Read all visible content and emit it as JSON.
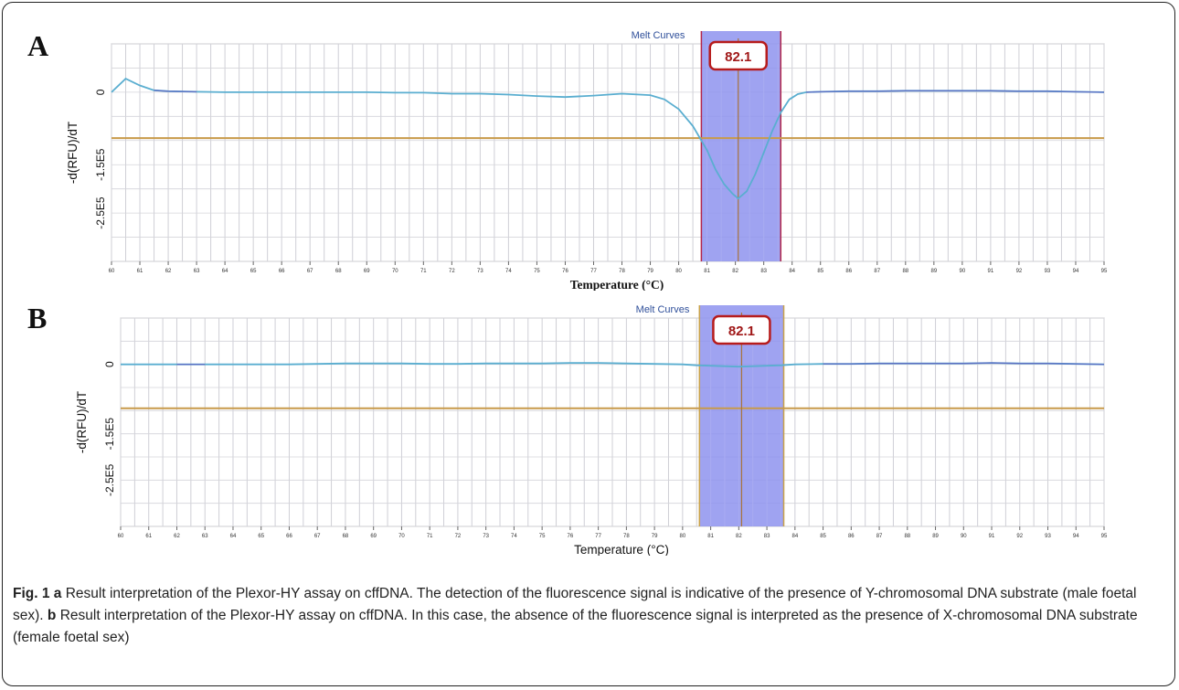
{
  "chart_data": [
    {
      "type": "line",
      "panel_label": "A",
      "title": "Melt Curves",
      "xlabel": "Temperature (°C)",
      "ylabel": "-d(RFU)/dT",
      "xlim": [
        60,
        95
      ],
      "ylim": [
        -3.5,
        1.0
      ],
      "x_ticks": [
        60,
        61,
        62,
        63,
        64,
        65,
        66,
        67,
        68,
        69,
        70,
        71,
        72,
        73,
        74,
        75,
        76,
        77,
        78,
        79,
        80,
        81,
        82,
        83,
        84,
        85,
        86,
        87,
        88,
        89,
        90,
        91,
        92,
        93,
        94,
        95
      ],
      "y_ticks": [
        {
          "value": 0,
          "label": "0"
        },
        {
          "value": -1.5,
          "label": "-1.5E5"
        },
        {
          "value": -2.5,
          "label": "-2.5E5"
        }
      ],
      "threshold": -0.95,
      "highlight_range": [
        80.8,
        83.6
      ],
      "marker": {
        "x": 82.1,
        "label": "82.1"
      },
      "grid": true,
      "colors": {
        "curve": "#5aaed0",
        "baseline_segment": "#5d5fc0",
        "threshold": "#c89a4a",
        "highlight": "#8e93ef",
        "highlight_edge": "#b3264a",
        "marker_line": "#a8733c",
        "marker_box": "#b71c1c"
      },
      "series": [
        {
          "x": [
            60.0,
            60.5,
            61.0,
            61.5,
            62.0,
            63.0,
            64.0,
            65.0,
            66.0,
            67.0,
            68.0,
            69.0,
            70.0,
            71.0,
            72.0,
            73.0,
            74.0,
            75.0,
            76.0,
            77.0,
            78.0,
            79.0,
            79.5,
            80.0,
            80.5,
            81.0,
            81.3,
            81.6,
            81.9,
            82.1,
            82.4,
            82.7,
            83.0,
            83.3,
            83.6,
            83.9,
            84.2,
            84.5,
            85.0,
            86.0,
            87.0,
            88.0,
            89.0,
            90.0,
            91.0,
            92.0,
            93.0,
            94.0,
            95.0
          ],
          "values": [
            0.0,
            0.28,
            0.14,
            0.04,
            0.02,
            0.01,
            0.0,
            0.0,
            0.0,
            0.0,
            0.0,
            0.0,
            -0.01,
            -0.01,
            -0.03,
            -0.03,
            -0.05,
            -0.08,
            -0.1,
            -0.07,
            -0.03,
            -0.06,
            -0.15,
            -0.35,
            -0.7,
            -1.2,
            -1.6,
            -1.9,
            -2.1,
            -2.2,
            -2.05,
            -1.7,
            -1.25,
            -0.8,
            -0.42,
            -0.15,
            -0.04,
            0.0,
            0.01,
            0.02,
            0.02,
            0.03,
            0.03,
            0.03,
            0.03,
            0.02,
            0.02,
            0.01,
            0.0
          ]
        }
      ]
    },
    {
      "type": "line",
      "panel_label": "B",
      "title": "Melt Curves",
      "xlabel": "Temperature (°C)",
      "ylabel": "-d(RFU)/dT",
      "xlim": [
        60,
        95
      ],
      "ylim": [
        -3.5,
        1.0
      ],
      "x_ticks": [
        60,
        61,
        62,
        63,
        64,
        65,
        66,
        67,
        68,
        69,
        70,
        71,
        72,
        73,
        74,
        75,
        76,
        77,
        78,
        79,
        80,
        81,
        82,
        83,
        84,
        85,
        86,
        87,
        88,
        89,
        90,
        91,
        92,
        93,
        94,
        95
      ],
      "y_ticks": [
        {
          "value": 0,
          "label": "0"
        },
        {
          "value": -1.5,
          "label": "-1.5E5"
        },
        {
          "value": -2.5,
          "label": "-2.5E5"
        }
      ],
      "threshold": -0.95,
      "highlight_range": [
        80.6,
        83.6
      ],
      "marker": {
        "x": 82.1,
        "label": "82.1"
      },
      "grid": true,
      "colors": {
        "curve": "#5aaed0",
        "baseline_segment": "#5d5fc0",
        "threshold": "#c89a4a",
        "highlight": "#8e93ef",
        "highlight_edge": "#c9a24a",
        "marker_line": "#a8733c",
        "marker_box": "#b71c1c"
      },
      "series": [
        {
          "x": [
            60.0,
            61.0,
            62.0,
            63.0,
            64.0,
            65.0,
            66.0,
            67.0,
            68.0,
            69.0,
            70.0,
            71.0,
            72.0,
            73.0,
            74.0,
            75.0,
            76.0,
            77.0,
            78.0,
            79.0,
            80.0,
            80.5,
            81.0,
            81.5,
            82.0,
            82.5,
            83.0,
            83.5,
            84.0,
            85.0,
            86.0,
            87.0,
            88.0,
            89.0,
            90.0,
            91.0,
            92.0,
            93.0,
            94.0,
            95.0
          ],
          "values": [
            0.0,
            0.0,
            0.0,
            0.0,
            0.0,
            0.0,
            0.0,
            0.01,
            0.02,
            0.02,
            0.02,
            0.01,
            0.01,
            0.02,
            0.02,
            0.02,
            0.03,
            0.03,
            0.02,
            0.01,
            0.0,
            -0.02,
            -0.03,
            -0.04,
            -0.05,
            -0.04,
            -0.03,
            -0.02,
            0.0,
            0.01,
            0.01,
            0.02,
            0.02,
            0.02,
            0.02,
            0.03,
            0.02,
            0.02,
            0.01,
            0.0
          ]
        }
      ]
    }
  ],
  "caption": {
    "fig_label": "Fig. 1",
    "a_label": "a",
    "a_text": "Result interpretation of the Plexor-HY assay on cffDNA. The detection of the fluorescence signal is indicative of the presence of Y-chromosomal DNA substrate (male foetal sex).",
    "b_label": "b",
    "b_text": "Result interpretation of the Plexor-HY assay on cffDNA. In this case, the absence of the fluorescence signal is interpreted as the presence of X-chromosomal DNA substrate (female foetal sex)"
  }
}
